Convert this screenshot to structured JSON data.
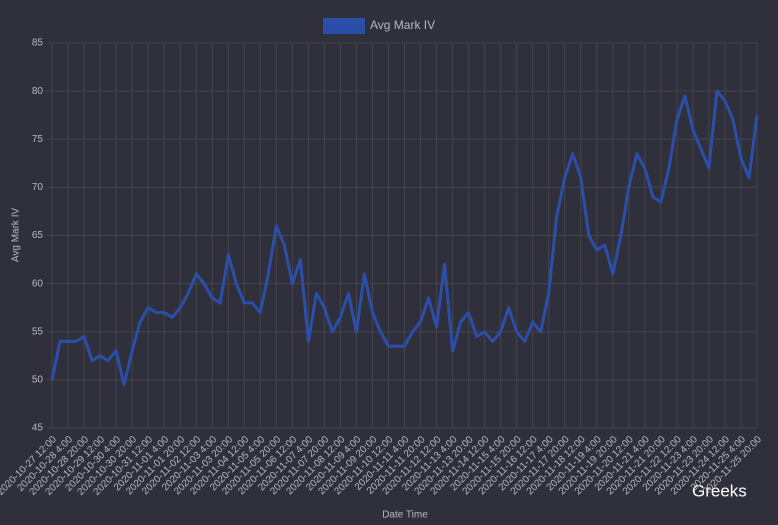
{
  "chart_data": {
    "type": "line",
    "x_label": "Date Time",
    "y_label": "Avg Mark IV",
    "watermark": "Greeks",
    "categories": [
      "2020-10-27 12:00",
      null,
      "2020-10-28 4:00",
      null,
      "2020-10-28 20:00",
      null,
      "2020-10-29 12:00",
      null,
      "2020-10-30 4:00",
      null,
      "2020-10-30 20:00",
      null,
      "2020-10-31 12:00",
      null,
      "2020-11-01 4:00",
      null,
      "2020-11-01 20:00",
      null,
      "2020-11-02 12:00",
      null,
      "2020-11-03 4:00",
      null,
      "2020-11-03 20:00",
      null,
      "2020-11-04 12:00",
      null,
      "2020-11-05 4:00",
      null,
      "2020-11-05 20:00",
      null,
      "2020-11-06 12:00",
      null,
      "2020-11-07 4:00",
      null,
      "2020-11-07 20:00",
      null,
      "2020-11-08 12:00",
      null,
      "2020-11-09 4:00",
      null,
      "2020-11-09 20:00",
      null,
      "2020-11-10 12:00",
      null,
      "2020-11-11 4:00",
      null,
      "2020-11-11 20:00",
      null,
      "2020-11-12 12:00",
      null,
      "2020-11-13 4:00",
      null,
      "2020-11-13 20:00",
      null,
      "2020-11-14 12:00",
      null,
      "2020-11-15 4:00",
      null,
      "2020-11-15 20:00",
      null,
      "2020-11-16 12:00",
      null,
      "2020-11-17 4:00",
      null,
      "2020-11-17 20:00",
      null,
      "2020-11-18 12:00",
      null,
      "2020-11-19 4:00",
      null,
      "2020-11-19 20:00",
      null,
      "2020-11-20 12:00",
      null,
      "2020-11-21 4:00",
      null,
      "2020-11-21 20:00",
      null,
      "2020-11-22 12:00",
      null,
      "2020-11-23 4:00",
      null,
      "2020-11-23 20:00",
      null,
      "2020-11-24 12:00",
      null,
      "2020-11-25 4:00",
      null,
      "2020-11-25 20:00"
    ],
    "series": [
      {
        "name": "Avg Mark IV",
        "color": "#2b4fa8",
        "values": [
          50,
          54,
          54,
          54,
          54.5,
          52,
          52.5,
          52,
          53,
          49.5,
          53,
          56,
          57.5,
          57,
          57,
          56.5,
          57.5,
          59,
          61,
          60,
          58.5,
          58,
          63,
          60,
          58,
          58,
          57,
          61,
          66,
          64,
          60,
          62.5,
          54,
          59,
          57.5,
          55,
          56.5,
          59,
          55,
          61,
          57,
          55,
          53.5,
          53.5,
          53.5,
          55,
          56,
          58.5,
          55.5,
          62,
          53,
          56,
          57,
          54.5,
          55,
          54,
          55,
          57.5,
          55,
          54,
          56,
          55,
          59,
          67,
          71,
          73.5,
          71,
          65,
          63.5,
          64,
          61,
          65,
          70,
          73.5,
          72,
          69,
          68.5,
          72,
          77,
          79.5,
          76,
          74,
          72,
          80,
          79,
          77,
          73,
          71,
          77.5
        ]
      }
    ],
    "ylim": [
      45,
      85
    ],
    "yticks": [
      45,
      50,
      55,
      60,
      65,
      70,
      75,
      80,
      85
    ],
    "grid": true,
    "legend": "top"
  }
}
